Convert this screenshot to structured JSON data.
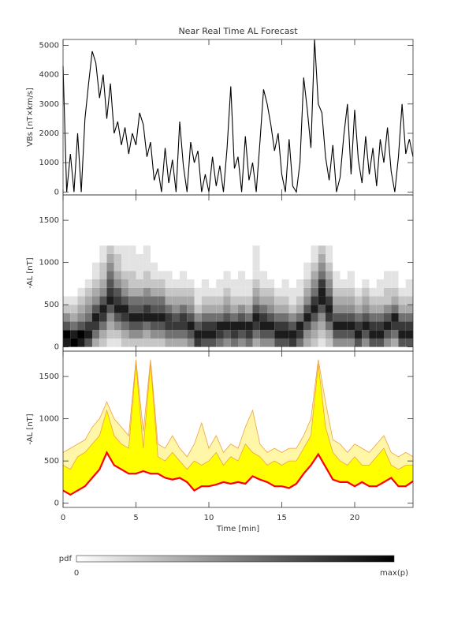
{
  "chart_data": [
    {
      "type": "line",
      "title": "Near Real Time AL Forecast",
      "ylabel": "VBs [nT×km/s]",
      "color": "#000000",
      "xlim": [
        0,
        24
      ],
      "xticks": [
        0,
        5,
        10,
        15,
        20
      ],
      "show_xtick_labels": false,
      "ylim": [
        -100,
        5200
      ],
      "yticks": [
        0,
        1000,
        2000,
        3000,
        4000,
        5000
      ],
      "x": [
        0,
        0.25,
        0.5,
        0.75,
        1,
        1.25,
        1.5,
        1.75,
        2,
        2.25,
        2.5,
        2.75,
        3,
        3.25,
        3.5,
        3.75,
        4,
        4.25,
        4.5,
        4.75,
        5,
        5.25,
        5.5,
        5.75,
        6,
        6.25,
        6.5,
        6.75,
        7,
        7.25,
        7.5,
        7.75,
        8,
        8.25,
        8.5,
        8.75,
        9,
        9.25,
        9.5,
        9.75,
        10,
        10.25,
        10.5,
        10.75,
        11,
        11.25,
        11.5,
        11.75,
        12,
        12.25,
        12.5,
        12.75,
        13,
        13.25,
        13.5,
        13.75,
        14,
        14.25,
        14.5,
        14.75,
        15,
        15.25,
        15.5,
        15.75,
        16,
        16.25,
        16.5,
        16.75,
        17,
        17.25,
        17.5,
        17.75,
        18,
        18.25,
        18.5,
        18.75,
        19,
        19.25,
        19.5,
        19.75,
        20,
        20.25,
        20.5,
        20.75,
        21,
        21.25,
        21.5,
        21.75,
        22,
        22.25,
        22.5,
        22.75,
        23,
        23.25,
        23.5,
        23.75,
        24
      ],
      "values": [
        4300,
        0,
        1300,
        0,
        2000,
        0,
        2500,
        3700,
        4800,
        4400,
        3200,
        4000,
        2500,
        3700,
        2000,
        2400,
        1600,
        2200,
        1300,
        2000,
        1600,
        2700,
        2300,
        1200,
        1700,
        400,
        800,
        0,
        1500,
        300,
        1100,
        0,
        2400,
        900,
        0,
        1700,
        1000,
        1400,
        0,
        600,
        0,
        1200,
        200,
        900,
        0,
        1500,
        3600,
        800,
        1200,
        0,
        1900,
        400,
        1000,
        0,
        1700,
        3500,
        3000,
        2300,
        1400,
        2000,
        600,
        0,
        1800,
        200,
        0,
        1000,
        3900,
        2800,
        1500,
        5200,
        3000,
        2700,
        1200,
        400,
        1600,
        0,
        500,
        1900,
        3000,
        600,
        2800,
        1100,
        300,
        1900,
        600,
        1500,
        200,
        1800,
        1000,
        2200,
        700,
        0,
        1200,
        3000,
        1300,
        1800,
        1200
      ]
    },
    {
      "type": "heatmap",
      "ylabel": "-AL [nT]",
      "xlim": [
        0,
        24
      ],
      "xticks": [
        0,
        5,
        10,
        15,
        20
      ],
      "show_xtick_labels": false,
      "ylim": [
        -50,
        1800
      ],
      "yticks": [
        0,
        500,
        1000,
        1500
      ],
      "zlim": [
        0,
        9
      ],
      "x_edges": [
        0,
        0.5,
        1,
        1.5,
        2,
        2.5,
        3,
        3.5,
        4,
        4.5,
        5,
        5.5,
        6,
        6.5,
        7,
        7.5,
        8,
        8.5,
        9,
        9.5,
        10,
        10.5,
        11,
        11.5,
        12,
        12.5,
        13,
        13.5,
        14,
        14.5,
        15,
        15.5,
        16,
        16.5,
        17,
        17.5,
        18,
        18.5,
        19,
        19.5,
        20,
        20.5,
        21,
        21.5,
        22,
        22.5,
        23,
        23.5,
        24
      ],
      "y_edges": [
        0,
        100,
        200,
        300,
        400,
        500,
        600,
        700,
        800,
        900,
        1000,
        1100,
        1200
      ],
      "z": [
        [
          8,
          9,
          8,
          6,
          3,
          2,
          1,
          1,
          2,
          2,
          2,
          2,
          2,
          2,
          3,
          3,
          3,
          4,
          7,
          6,
          6,
          5,
          4,
          5,
          4,
          5,
          3,
          4,
          4,
          6,
          6,
          7,
          5,
          3,
          2,
          1,
          2,
          4,
          4,
          4,
          6,
          4,
          6,
          6,
          4,
          3,
          6,
          6
        ],
        [
          9,
          8,
          9,
          8,
          5,
          3,
          2,
          2,
          3,
          4,
          4,
          3,
          4,
          4,
          5,
          5,
          5,
          6,
          8,
          8,
          8,
          7,
          6,
          7,
          6,
          7,
          5,
          6,
          6,
          8,
          8,
          8,
          7,
          4,
          3,
          2,
          3,
          6,
          6,
          6,
          8,
          6,
          8,
          8,
          6,
          5,
          8,
          8
        ],
        [
          6,
          5,
          6,
          7,
          7,
          5,
          3,
          4,
          5,
          6,
          6,
          5,
          6,
          6,
          7,
          7,
          7,
          8,
          6,
          7,
          7,
          8,
          8,
          8,
          8,
          8,
          7,
          8,
          8,
          7,
          7,
          6,
          8,
          6,
          4,
          3,
          5,
          8,
          8,
          8,
          7,
          8,
          7,
          7,
          8,
          7,
          7,
          7
        ],
        [
          4,
          3,
          4,
          5,
          8,
          7,
          4,
          6,
          7,
          8,
          8,
          8,
          8,
          8,
          7,
          6,
          7,
          6,
          4,
          5,
          5,
          5,
          6,
          5,
          6,
          5,
          8,
          7,
          6,
          5,
          5,
          4,
          5,
          8,
          6,
          4,
          7,
          6,
          6,
          6,
          5,
          6,
          5,
          5,
          6,
          8,
          5,
          5
        ],
        [
          2,
          2,
          3,
          4,
          6,
          8,
          6,
          8,
          8,
          6,
          6,
          7,
          6,
          6,
          5,
          4,
          5,
          4,
          2,
          3,
          3,
          3,
          4,
          3,
          4,
          3,
          6,
          5,
          4,
          3,
          3,
          2,
          3,
          6,
          8,
          6,
          8,
          4,
          4,
          4,
          3,
          4,
          3,
          3,
          4,
          5,
          3,
          3
        ],
        [
          1,
          1,
          2,
          3,
          4,
          6,
          8,
          7,
          6,
          5,
          5,
          5,
          5,
          5,
          3,
          3,
          3,
          3,
          1,
          2,
          2,
          2,
          3,
          2,
          2,
          2,
          4,
          3,
          3,
          2,
          2,
          1,
          2,
          4,
          7,
          8,
          7,
          3,
          3,
          3,
          2,
          3,
          2,
          2,
          2,
          3,
          2,
          2
        ],
        [
          0,
          0,
          1,
          2,
          3,
          4,
          7,
          6,
          4,
          3,
          3,
          4,
          3,
          3,
          2,
          2,
          2,
          2,
          1,
          1,
          1,
          1,
          2,
          1,
          1,
          1,
          3,
          2,
          2,
          1,
          1,
          1,
          1,
          3,
          5,
          8,
          5,
          2,
          2,
          2,
          1,
          2,
          1,
          1,
          2,
          2,
          1,
          1
        ],
        [
          0,
          0,
          0,
          1,
          2,
          3,
          6,
          4,
          3,
          2,
          2,
          2,
          2,
          2,
          1,
          1,
          1,
          1,
          0,
          1,
          0,
          1,
          1,
          1,
          1,
          1,
          2,
          1,
          1,
          0,
          1,
          0,
          1,
          2,
          4,
          7,
          4,
          1,
          1,
          1,
          0,
          1,
          0,
          1,
          1,
          1,
          0,
          1
        ],
        [
          0,
          0,
          0,
          0,
          1,
          2,
          5,
          3,
          2,
          2,
          1,
          2,
          1,
          1,
          1,
          0,
          1,
          0,
          0,
          0,
          0,
          0,
          1,
          0,
          1,
          0,
          1,
          1,
          0,
          0,
          0,
          0,
          0,
          1,
          3,
          5,
          3,
          1,
          0,
          1,
          0,
          0,
          0,
          0,
          1,
          1,
          0,
          0
        ],
        [
          0,
          0,
          0,
          0,
          1,
          2,
          4,
          2,
          1,
          1,
          1,
          1,
          1,
          0,
          0,
          0,
          0,
          0,
          0,
          0,
          0,
          0,
          0,
          0,
          0,
          0,
          1,
          0,
          0,
          0,
          0,
          0,
          0,
          1,
          2,
          4,
          2,
          0,
          0,
          0,
          0,
          0,
          0,
          0,
          0,
          0,
          0,
          0
        ],
        [
          0,
          0,
          0,
          0,
          0,
          1,
          3,
          2,
          1,
          1,
          1,
          1,
          0,
          0,
          0,
          0,
          0,
          0,
          0,
          0,
          0,
          0,
          0,
          0,
          0,
          0,
          1,
          0,
          0,
          0,
          0,
          0,
          0,
          0,
          1,
          3,
          1,
          0,
          0,
          0,
          0,
          0,
          0,
          0,
          0,
          0,
          0,
          0
        ],
        [
          0,
          0,
          0,
          0,
          0,
          1,
          2,
          1,
          1,
          1,
          0,
          1,
          0,
          0,
          0,
          0,
          0,
          0,
          0,
          0,
          0,
          0,
          0,
          0,
          0,
          0,
          1,
          0,
          0,
          0,
          0,
          0,
          0,
          0,
          1,
          2,
          1,
          0,
          0,
          0,
          0,
          0,
          0,
          0,
          0,
          0,
          0,
          0
        ]
      ]
    },
    {
      "type": "band",
      "ylabel": "-AL [nT]",
      "xlabel": "Time [min]",
      "xlim": [
        0,
        24
      ],
      "xticks": [
        0,
        5,
        10,
        15,
        20
      ],
      "show_xtick_labels": true,
      "ylim": [
        -50,
        1800
      ],
      "yticks": [
        0,
        500,
        1000,
        1500
      ],
      "x": [
        0,
        0.5,
        1,
        1.5,
        2,
        2.5,
        3,
        3.5,
        4,
        4.5,
        5,
        5.5,
        6,
        6.5,
        7,
        7.5,
        8,
        8.5,
        9,
        9.5,
        10,
        10.5,
        11,
        11.5,
        12,
        12.5,
        13,
        13.5,
        14,
        14.5,
        15,
        15.5,
        16,
        16.5,
        17,
        17.5,
        18,
        18.5,
        19,
        19.5,
        20,
        20.5,
        21,
        21.5,
        22,
        22.5,
        23,
        23.5,
        24
      ],
      "series": [
        {
          "color": "#fff6a8",
          "line_color": "#f0a040",
          "values": [
            600,
            650,
            700,
            750,
            900,
            1000,
            1200,
            1000,
            900,
            800,
            1700,
            850,
            1700,
            700,
            650,
            800,
            650,
            550,
            700,
            950,
            650,
            800,
            600,
            700,
            650,
            900,
            1100,
            700,
            600,
            650,
            600,
            650,
            650,
            800,
            1000,
            1700,
            1200,
            750,
            700,
            600,
            700,
            650,
            600,
            700,
            800,
            600,
            550,
            600,
            550
          ]
        },
        {
          "color": "#ffff00",
          "line_color": "#f0a040",
          "values": [
            450,
            400,
            550,
            600,
            700,
            800,
            1100,
            800,
            700,
            650,
            1650,
            650,
            1650,
            550,
            500,
            600,
            500,
            400,
            500,
            450,
            500,
            600,
            450,
            550,
            500,
            700,
            600,
            550,
            450,
            500,
            450,
            500,
            500,
            650,
            800,
            1650,
            900,
            600,
            500,
            450,
            550,
            450,
            450,
            550,
            650,
            450,
            400,
            450,
            450
          ]
        },
        {
          "color": "#ff0000",
          "values": [
            150,
            100,
            150,
            200,
            300,
            400,
            600,
            450,
            400,
            350,
            350,
            380,
            350,
            350,
            300,
            280,
            300,
            250,
            150,
            200,
            200,
            220,
            250,
            230,
            250,
            230,
            320,
            280,
            250,
            200,
            200,
            180,
            230,
            350,
            450,
            580,
            430,
            280,
            250,
            250,
            200,
            250,
            200,
            200,
            250,
            300,
            200,
            200,
            260
          ]
        }
      ]
    }
  ],
  "colorbar": {
    "label": "pdf",
    "min_label": "0",
    "max_label": "max(p)"
  }
}
